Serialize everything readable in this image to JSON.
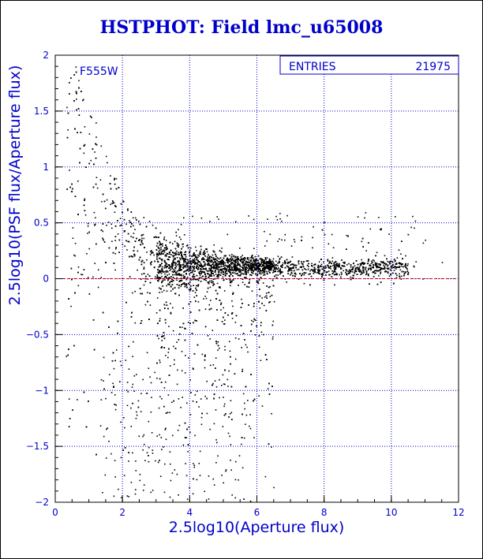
{
  "chart_data": {
    "type": "scatter",
    "title": "HSTPHOT: Field lmc_u65008",
    "xlabel": "2.5log10(Aperture flux)",
    "ylabel": "2.5log10(PSF flux/Aperture flux)",
    "xlim": [
      0,
      12
    ],
    "ylim": [
      -2,
      2
    ],
    "x_ticks": [
      "0",
      "2",
      "4",
      "6",
      "8",
      "10",
      "12"
    ],
    "y_ticks": [
      "2",
      "1.5",
      "1",
      "0.5",
      "0",
      "-0.5",
      "-1",
      "-1.5",
      "-2"
    ],
    "grid": true,
    "reference_line": {
      "y": 0,
      "color": "#cc0000"
    },
    "annotation": "F555W",
    "stats": {
      "label": "ENTRIES",
      "value": "21975"
    },
    "series": [
      {
        "marker_color": "#000000",
        "approximate_points": [
          [
            0.6,
            1.9
          ],
          [
            0.8,
            1.6
          ],
          [
            1.0,
            1.3
          ],
          [
            1.2,
            1.4
          ],
          [
            1.5,
            1.1
          ],
          [
            1.8,
            0.9
          ],
          [
            2.0,
            0.7
          ],
          [
            2.3,
            0.55
          ],
          [
            2.6,
            0.4
          ],
          [
            3.0,
            0.3
          ],
          [
            3.5,
            0.2
          ],
          [
            4.0,
            0.15
          ],
          [
            5.0,
            0.12
          ],
          [
            6.0,
            0.1
          ],
          [
            7.0,
            0.1
          ],
          [
            8.0,
            0.1
          ],
          [
            9.0,
            0.1
          ],
          [
            10.0,
            0.12
          ],
          [
            11.0,
            0.35
          ],
          [
            11.5,
            0.15
          ],
          [
            3.0,
            -0.3
          ],
          [
            3.5,
            -0.6
          ],
          [
            4.0,
            -0.9
          ],
          [
            4.5,
            -1.2
          ],
          [
            3.2,
            -1.5
          ],
          [
            2.5,
            -1.8
          ],
          [
            1.5,
            -1.6
          ],
          [
            5.0,
            -0.4
          ],
          [
            6.5,
            -0.2
          ],
          [
            8.0,
            0.4
          ]
        ]
      }
    ]
  }
}
